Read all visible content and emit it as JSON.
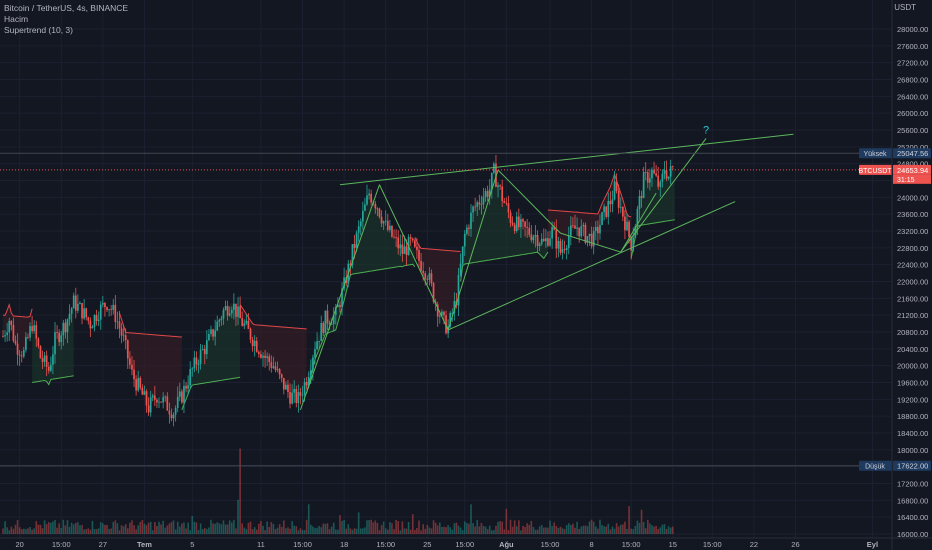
{
  "legend": {
    "symbol": "Bitcoin / TetherUS, 4s, BINANCE",
    "volume": "Hacim",
    "indicator": "Supertrend (10, 3)"
  },
  "axis_currency": "USDT",
  "colors": {
    "background": "#131722",
    "up": "#26a69a",
    "down": "#ef5350",
    "trendline": "#5cb85c",
    "high_line": "#434651",
    "price_line": "#ef5350",
    "label_dark": "#1e3a5f",
    "question": "#26c6da"
  },
  "question_mark": "?",
  "chart_data": {
    "type": "candlestick",
    "title": "Bitcoin / TetherUS, 4s, BINANCE",
    "y_axis": {
      "currency": "USDT",
      "ticks": [
        16000,
        16400,
        16800,
        17200,
        17600,
        18000,
        18400,
        18800,
        19200,
        19600,
        20000,
        20400,
        20800,
        21200,
        21600,
        22000,
        22400,
        22800,
        23200,
        23600,
        24000,
        24400,
        24800,
        25200,
        25600,
        26000,
        26400,
        26800,
        27200,
        27600,
        28000
      ],
      "tick_labels": [
        "16000.00",
        "16400.00",
        "16800.00",
        "17200.00",
        "17600.00",
        "18000.00",
        "18400.00",
        "18800.00",
        "19200.00",
        "19600.00",
        "20000.00",
        "20400.00",
        "20800.00",
        "21200.00",
        "21600.00",
        "22000.00",
        "22400.00",
        "22800.00",
        "23200.00",
        "23600.00",
        "24000.00",
        "24400.00",
        "24800.00",
        "25200.00",
        "25600.00",
        "26000.00",
        "26400.00",
        "26800.00",
        "27200.00",
        "27600.00",
        "28000.00"
      ],
      "ylim": [
        16000,
        28400
      ]
    },
    "x_axis": {
      "ticks": [
        {
          "label": "20",
          "bar": 8
        },
        {
          "label": "15:00",
          "bar": 28
        },
        {
          "label": "27",
          "bar": 48
        },
        {
          "label": "Tem",
          "bar": 68
        },
        {
          "label": "5",
          "bar": 91
        },
        {
          "label": "11",
          "bar": 124
        },
        {
          "label": "15:00",
          "bar": 144
        },
        {
          "label": "18",
          "bar": 164
        },
        {
          "label": "15:00",
          "bar": 184
        },
        {
          "label": "25",
          "bar": 204
        },
        {
          "label": "15:00",
          "bar": 222
        },
        {
          "label": "Ağu",
          "bar": 242
        },
        {
          "label": "15:00",
          "bar": 263
        },
        {
          "label": "8",
          "bar": 283
        },
        {
          "label": "15:00",
          "bar": 302
        },
        {
          "label": "15",
          "bar": 322
        },
        {
          "label": "15:00",
          "bar": 341
        },
        {
          "label": "22",
          "bar": 361
        },
        {
          "label": "26",
          "bar": 381
        },
        {
          "label": "Eyl",
          "bar": 418
        }
      ]
    },
    "price_path": [
      [
        0,
        20700
      ],
      [
        3,
        21100
      ],
      [
        6,
        20500
      ],
      [
        10,
        20300
      ],
      [
        14,
        21000
      ],
      [
        18,
        20200
      ],
      [
        22,
        19900
      ],
      [
        25,
        20600
      ],
      [
        30,
        21000
      ],
      [
        34,
        21500
      ],
      [
        38,
        21300
      ],
      [
        42,
        21000
      ],
      [
        46,
        21300
      ],
      [
        50,
        21500
      ],
      [
        54,
        21200
      ],
      [
        58,
        20600
      ],
      [
        62,
        19800
      ],
      [
        66,
        19400
      ],
      [
        70,
        19000
      ],
      [
        74,
        19300
      ],
      [
        78,
        19100
      ],
      [
        82,
        18900
      ],
      [
        86,
        19300
      ],
      [
        90,
        19800
      ],
      [
        94,
        20200
      ],
      [
        98,
        20500
      ],
      [
        102,
        20900
      ],
      [
        106,
        21300
      ],
      [
        110,
        21500
      ],
      [
        114,
        21100
      ],
      [
        118,
        20800
      ],
      [
        122,
        20500
      ],
      [
        126,
        20200
      ],
      [
        130,
        20000
      ],
      [
        134,
        19600
      ],
      [
        138,
        19300
      ],
      [
        142,
        19200
      ],
      [
        146,
        19700
      ],
      [
        150,
        20500
      ],
      [
        155,
        21100
      ],
      [
        160,
        21200
      ],
      [
        164,
        21900
      ],
      [
        168,
        22700
      ],
      [
        172,
        23400
      ],
      [
        176,
        24100
      ],
      [
        180,
        23800
      ],
      [
        184,
        23300
      ],
      [
        188,
        23000
      ],
      [
        192,
        22700
      ],
      [
        196,
        22900
      ],
      [
        200,
        22500
      ],
      [
        204,
        22200
      ],
      [
        208,
        21500
      ],
      [
        212,
        21000
      ],
      [
        214,
        20900
      ],
      [
        218,
        21600
      ],
      [
        222,
        23100
      ],
      [
        226,
        23700
      ],
      [
        230,
        24000
      ],
      [
        234,
        24200
      ],
      [
        236,
        24600
      ],
      [
        240,
        24000
      ],
      [
        244,
        23500
      ],
      [
        248,
        23300
      ],
      [
        252,
        23200
      ],
      [
        256,
        23100
      ],
      [
        260,
        22900
      ],
      [
        264,
        23200
      ],
      [
        268,
        22700
      ],
      [
        272,
        23100
      ],
      [
        276,
        23300
      ],
      [
        280,
        23100
      ],
      [
        284,
        23000
      ],
      [
        288,
        23500
      ],
      [
        292,
        23900
      ],
      [
        294,
        24200
      ],
      [
        298,
        23600
      ],
      [
        302,
        22900
      ],
      [
        304,
        23400
      ],
      [
        308,
        24400
      ],
      [
        312,
        24600
      ],
      [
        316,
        24200
      ],
      [
        318,
        24700
      ],
      [
        320,
        24500
      ],
      [
        322,
        24700
      ]
    ],
    "supertrend": [
      {
        "dir": "down",
        "from": 0,
        "to": 14,
        "level": 21200
      },
      {
        "dir": "up",
        "from": 14,
        "to": 34,
        "level": 19600
      },
      {
        "dir": "down",
        "from": 56,
        "to": 86,
        "level": 20800
      },
      {
        "dir": "up",
        "from": 86,
        "to": 114,
        "level": 19500
      },
      {
        "dir": "down",
        "from": 114,
        "to": 146,
        "level": 21000
      },
      {
        "dir": "up",
        "from": 146,
        "to": 198,
        "level": 22000
      },
      {
        "dir": "down",
        "from": 198,
        "to": 220,
        "level": 22800
      },
      {
        "dir": "up",
        "from": 220,
        "to": 262,
        "level": 22400
      },
      {
        "dir": "down",
        "from": 262,
        "to": 302,
        "level": 23700
      },
      {
        "dir": "up",
        "from": 302,
        "to": 323,
        "level": 23300
      }
    ],
    "trendlines": [
      {
        "from": [
          162,
          24300
        ],
        "to": [
          380,
          25500
        ]
      },
      {
        "from": [
          214,
          20850
        ],
        "to": [
          352,
          23900
        ]
      },
      {
        "from": [
          143,
          18950
        ],
        "to": [
          181,
          24300
        ]
      },
      {
        "from": [
          181,
          24300
        ],
        "to": [
          214,
          20850
        ]
      },
      {
        "from": [
          214,
          20850
        ],
        "to": [
          238,
          24650
        ]
      },
      {
        "from": [
          238,
          24650
        ],
        "to": [
          268,
          23150
        ]
      },
      {
        "from": [
          268,
          23150
        ],
        "to": [
          297,
          22700
        ]
      },
      {
        "from": [
          297,
          22700
        ],
        "to": [
          338,
          25400
        ]
      },
      {
        "from": [
          297,
          22700
        ],
        "to": [
          314,
          24100
        ]
      }
    ],
    "labels": {
      "high": {
        "text": "Yüksek",
        "value": "25047.56",
        "price": 25047.56
      },
      "current": {
        "text": "BTCUSDT",
        "value": "24653.94",
        "countdown": "31:15",
        "price": 24653.94
      },
      "low": {
        "text": "Düşük",
        "value": "17622.00",
        "price": 17622.0
      }
    },
    "volume": {
      "baseline_price": 16000,
      "typical": "small bars with spikes",
      "spikes": [
        {
          "bar": 114,
          "height": 0.95
        },
        {
          "bar": 113,
          "height": 0.38
        },
        {
          "bar": 147,
          "height": 0.33
        },
        {
          "bar": 225,
          "height": 0.33
        },
        {
          "bar": 242,
          "height": 0.28
        },
        {
          "bar": 301,
          "height": 0.31
        },
        {
          "bar": 307,
          "height": 0.27
        },
        {
          "bar": 171,
          "height": 0.24
        },
        {
          "bar": 197,
          "height": 0.22
        },
        {
          "bar": 91,
          "height": 0.2
        },
        {
          "bar": 162,
          "height": 0.21
        }
      ]
    }
  }
}
